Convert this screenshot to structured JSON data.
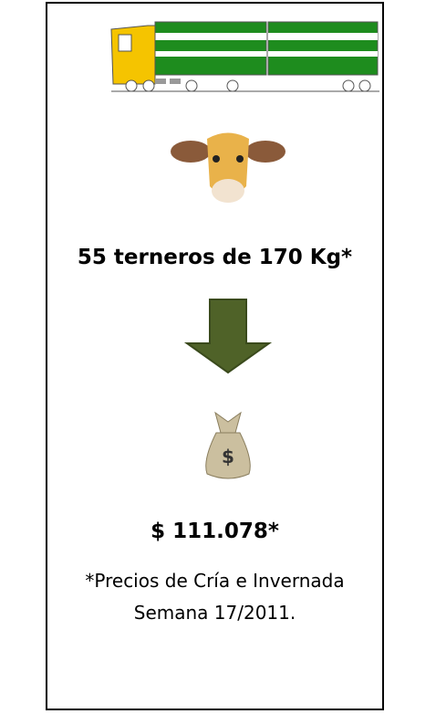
{
  "headline": "55 terneros de 170 Kg*",
  "price": "$ 111.078*",
  "note_line1": "*Precios de Cría e Invernada",
  "note_line2": "Semana 17/2011."
}
